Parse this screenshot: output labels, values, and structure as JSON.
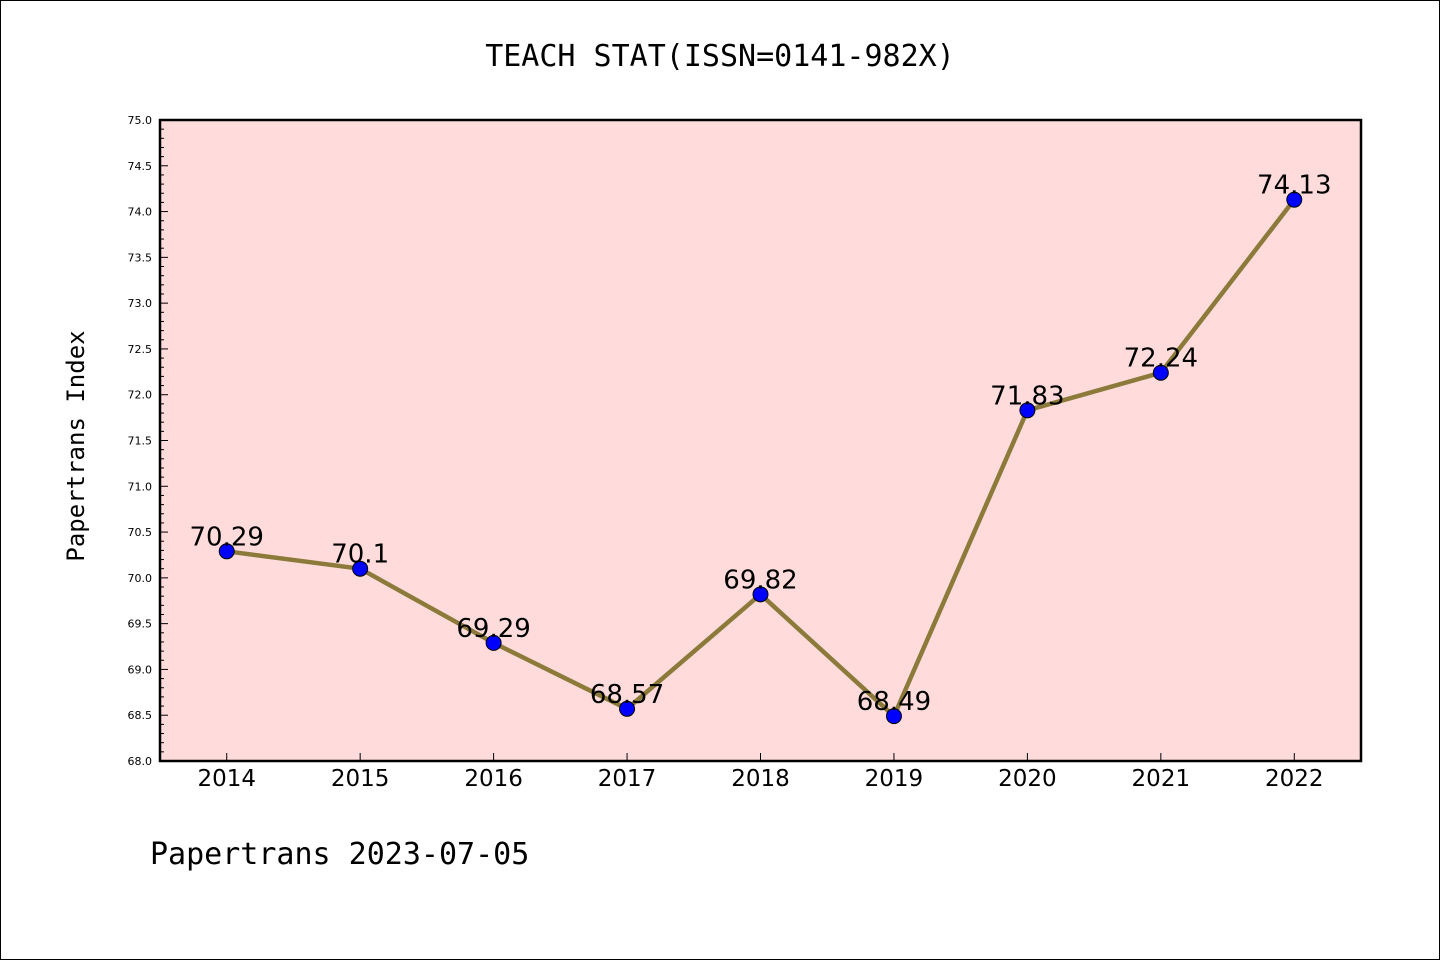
{
  "chart_data": {
    "type": "line",
    "title": "TEACH STAT(ISSN=0141-982X)",
    "xlabel": "",
    "ylabel": "Papertrans Index",
    "categories": [
      "2014",
      "2015",
      "2016",
      "2017",
      "2018",
      "2019",
      "2020",
      "2021",
      "2022"
    ],
    "series": [
      {
        "values": [
          70.29,
          70.1,
          69.29,
          68.57,
          69.82,
          68.49,
          71.83,
          72.24,
          74.13
        ],
        "data_labels": [
          "70.29",
          "70.1",
          "69.29",
          "68.57",
          "69.82",
          "68.49",
          "71.83",
          "72.24",
          "74.13"
        ],
        "line_color": "#8b7a3a",
        "marker_color": "#0000ff"
      }
    ],
    "ylim": [
      68.0,
      75.0
    ],
    "yticks": [
      "68.0",
      "68.5",
      "69.0",
      "69.5",
      "70.0",
      "70.5",
      "71.0",
      "71.5",
      "72.0",
      "72.5",
      "73.0",
      "73.5",
      "74.0",
      "74.5",
      "75.0"
    ],
    "grid": false,
    "plot_background": "#ffdcdb",
    "footer": "Papertrans 2023-07-05"
  }
}
